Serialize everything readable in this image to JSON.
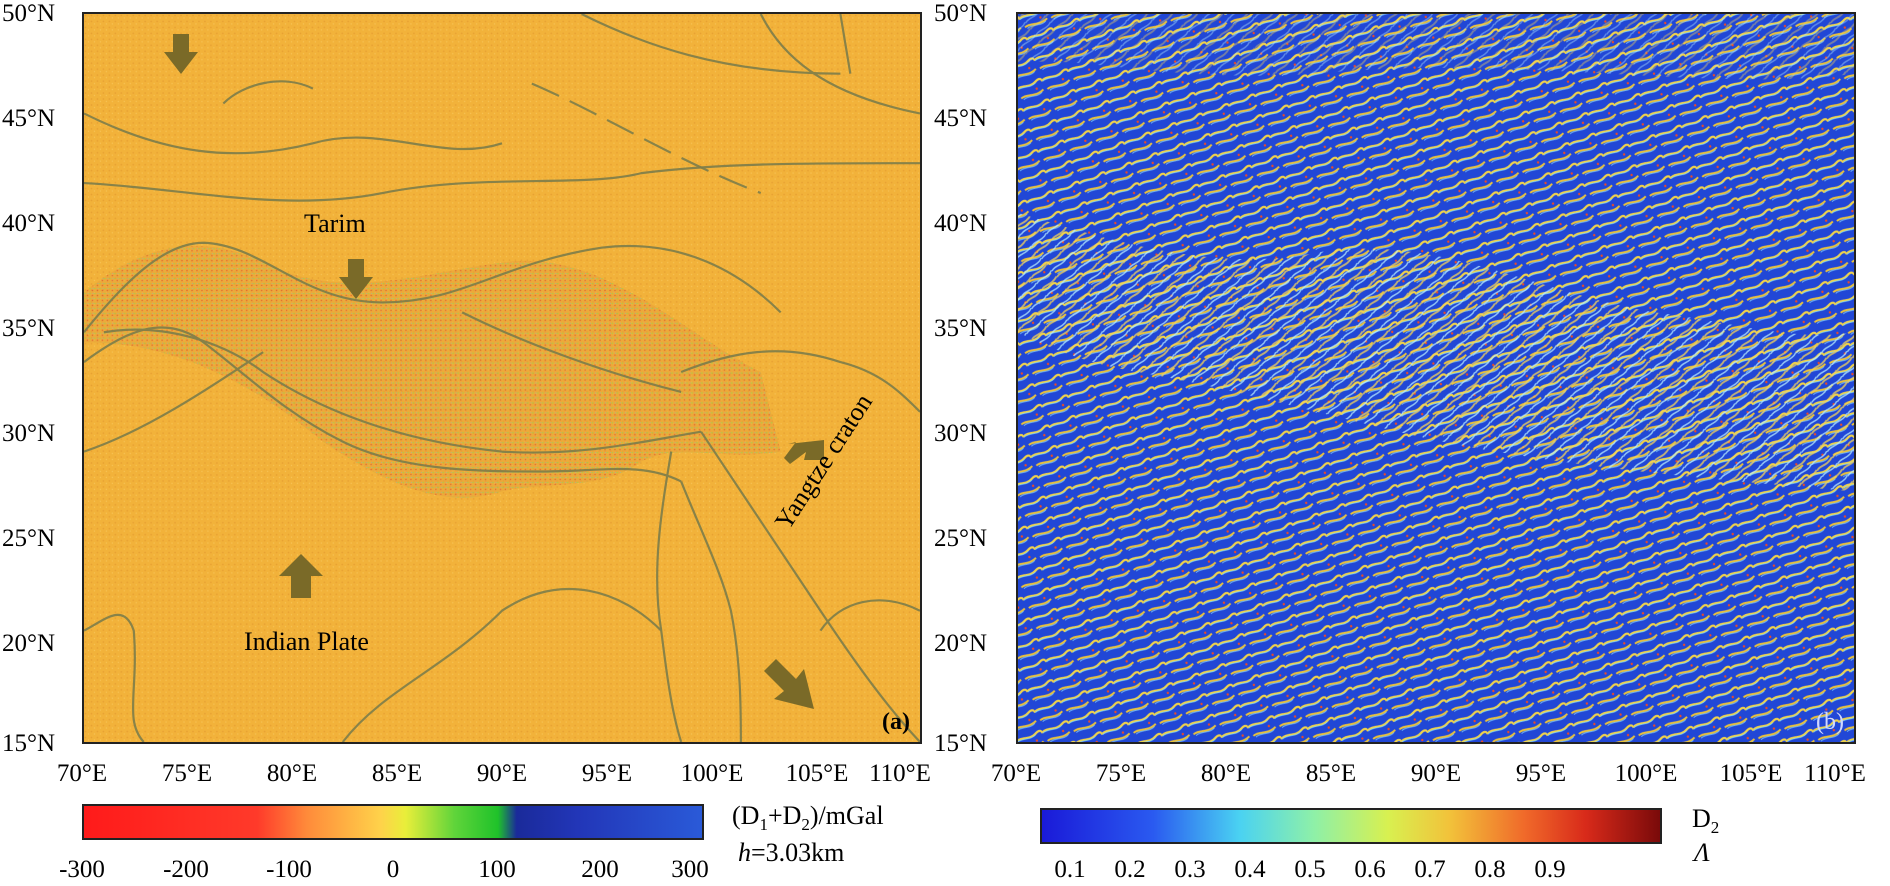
{
  "colors": {
    "panel_a_background": "#f2b23a",
    "panel_b_background": "#2147d6",
    "fault_lines": "#7d7d4a",
    "arrow_fill": "#7a6a28"
  },
  "panel_a": {
    "label": "(a)",
    "places": {
      "tarim": "Tarim",
      "indian_plate": "Indian Plate",
      "yangtze_craton": "Yangtze craton"
    }
  },
  "panel_b": {
    "label": "(b)"
  },
  "axes": {
    "lat_ticks": [
      "50°N",
      "45°N",
      "40°N",
      "35°N",
      "30°N",
      "25°N",
      "20°N",
      "15°N"
    ],
    "lon_ticks": [
      "70°E",
      "75°E",
      "80°E",
      "85°E",
      "90°E",
      "95°E",
      "100°E",
      "105°E",
      "110°E"
    ]
  },
  "colorbar_a": {
    "title": "(D1+D2)/mGal",
    "title_main": "(D",
    "title_sub1": "1",
    "title_mid": "+D",
    "title_sub2": "2",
    "title_end": ")/mGal",
    "subtitle_prefix": "h",
    "subtitle_value": "=3.03km",
    "ticks": [
      "-300",
      "-200",
      "-100",
      "0",
      "100",
      "200",
      "300"
    ]
  },
  "colorbar_b": {
    "title": "D2",
    "title_main": "D",
    "title_sub": "2",
    "subtitle": "Λ",
    "ticks": [
      "0.1",
      "0.2",
      "0.3",
      "0.4",
      "0.5",
      "0.6",
      "0.7",
      "0.8",
      "0.9"
    ]
  }
}
